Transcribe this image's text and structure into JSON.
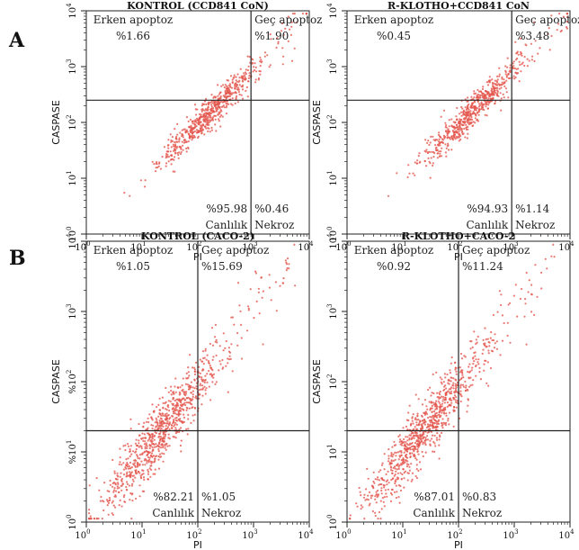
{
  "panel_labels": [
    "A",
    "B"
  ],
  "chart_data": [
    {
      "type": "scatter",
      "title": "KONTROL (CCD841 CoN)",
      "xlabel": "PI",
      "ylabel": "CASPASE",
      "xscale": "log",
      "yscale": "log",
      "xlim": [
        1,
        10000
      ],
      "ylim": [
        1,
        10000
      ],
      "tick_labels_x": [
        "10",
        "10",
        "10",
        "10",
        "10"
      ],
      "tick_exponents_x": [
        "0",
        "1",
        "2",
        "3",
        "4"
      ],
      "tick_labels_y": [
        "10",
        "10",
        "10",
        "10",
        "10"
      ],
      "tick_exponents_y": [
        "0",
        "1",
        "2",
        "3",
        "4"
      ],
      "gates": {
        "x": 900,
        "y": 250
      },
      "quadrants": {
        "upper_left": {
          "name": "Erken apoptoz",
          "value": "%1.66"
        },
        "upper_right": {
          "name": "Geç apoptoz",
          "value": "%1.90"
        },
        "lower_left": {
          "name": "Canlılık",
          "value": "%95.98"
        },
        "lower_right": {
          "name": "Nekroz",
          "value": "%0.46"
        }
      },
      "point_color": "#e4584f"
    },
    {
      "type": "scatter",
      "title": "R-KLOTHO+CCD841 CoN",
      "xlabel": "PI",
      "ylabel": "CASPASE",
      "xscale": "log",
      "yscale": "log",
      "xlim": [
        1,
        10000
      ],
      "ylim": [
        1,
        10000
      ],
      "tick_labels_x": [
        "10",
        "10",
        "10",
        "10",
        "10"
      ],
      "tick_exponents_x": [
        "0",
        "1",
        "2",
        "3",
        "4"
      ],
      "tick_labels_y": [
        "10",
        "10",
        "10",
        "10",
        "10"
      ],
      "tick_exponents_y": [
        "0",
        "1",
        "2",
        "3",
        "4"
      ],
      "gates": {
        "x": 900,
        "y": 250
      },
      "quadrants": {
        "upper_left": {
          "name": "Erken apoptoz",
          "value": "%0.45"
        },
        "upper_right": {
          "name": "Geç apoptoz",
          "value": "%3.48"
        },
        "lower_left": {
          "name": "Canlılık",
          "value": "%94.93"
        },
        "lower_right": {
          "name": "Nekroz",
          "value": "%1.14"
        }
      },
      "point_color": "#e4584f"
    },
    {
      "type": "scatter",
      "title": "KONTROL (CACO-2)",
      "xlabel": "PI",
      "ylabel": "CASPASE",
      "xscale": "log",
      "yscale": "log",
      "xlim": [
        1,
        10000
      ],
      "ylim": [
        1,
        10000
      ],
      "tick_labels_x": [
        "10",
        "10",
        "10",
        "10",
        "10"
      ],
      "tick_exponents_x": [
        "0",
        "1",
        "2",
        "3",
        "4"
      ],
      "tick_labels_y": [
        "10",
        "%10",
        "%10",
        "10",
        "10"
      ],
      "tick_exponents_y": [
        "0",
        "1",
        "2",
        "3",
        "4"
      ],
      "gates": {
        "x": 100,
        "y": 20
      },
      "quadrants": {
        "upper_left": {
          "name": "Erken apoptoz",
          "value": "%1.05"
        },
        "upper_right": {
          "name": "Geç apoptoz",
          "value": "%15.69"
        },
        "lower_left": {
          "name": "Canlılık",
          "value": "%82.21"
        },
        "lower_right": {
          "name": "Nekroz",
          "value": "%1.05"
        }
      },
      "point_color": "#e4584f"
    },
    {
      "type": "scatter",
      "title": "R-KLOTHO+CACO-2",
      "xlabel": "PI",
      "ylabel": "CASPASE",
      "xscale": "log",
      "yscale": "log",
      "xlim": [
        1,
        10000
      ],
      "ylim": [
        1,
        10000
      ],
      "tick_labels_x": [
        "10",
        "10",
        "10",
        "10",
        "10"
      ],
      "tick_exponents_x": [
        "0",
        "1",
        "2",
        "3",
        "4"
      ],
      "tick_labels_y": [
        "10",
        "10",
        "10",
        "10",
        "10"
      ],
      "tick_exponents_y": [
        "0",
        "1",
        "2",
        "3",
        "4"
      ],
      "gates": {
        "x": 100,
        "y": 20
      },
      "quadrants": {
        "upper_left": {
          "name": "Erken apoptoz",
          "value": "%0.92"
        },
        "upper_right": {
          "name": "Geç apoptoz",
          "value": "%11.24"
        },
        "lower_left": {
          "name": "Canlılık",
          "value": "%87.01"
        },
        "lower_right": {
          "name": "Nekroz",
          "value": "%0.83"
        }
      },
      "point_color": "#e4584f"
    }
  ]
}
